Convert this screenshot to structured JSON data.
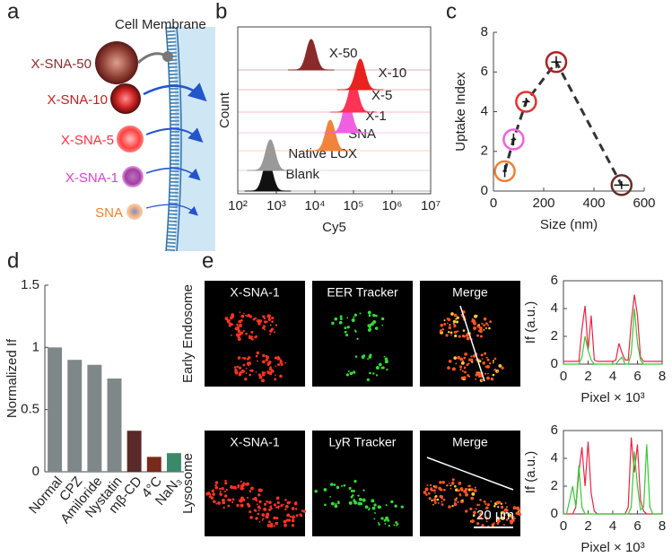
{
  "panel_labels": [
    "a",
    "b",
    "c",
    "d",
    "e"
  ],
  "schematic": {
    "membrane_label": "Cell Membrane",
    "particles": [
      "X-SNA-50",
      "X-SNA-10",
      "X-SNA-5",
      "X-SNA-1",
      "SNA"
    ]
  },
  "micrographs": {
    "rows": [
      {
        "label": "Early Endosome",
        "channels": [
          "X-SNA-1",
          "EER Tracker",
          "Merge"
        ]
      },
      {
        "label": "Lysosome",
        "channels": [
          "X-SNA-1",
          "LyR Tracker",
          "Merge"
        ]
      }
    ],
    "scale_bar": "20 μm"
  },
  "chart_data": [
    {
      "type": "ridge",
      "x_label": "Cy5",
      "y_label": "Count",
      "xscale": "log",
      "xlim": [
        100,
        10000000
      ],
      "xticks": [
        {
          "value": 100,
          "label": "10²"
        },
        {
          "value": 1000,
          "label": "10³"
        },
        {
          "value": 10000,
          "label": "10⁴"
        },
        {
          "value": 100000,
          "label": "10⁵"
        },
        {
          "value": 1000000,
          "label": "10⁶"
        },
        {
          "value": 10000000,
          "label": "10⁷"
        }
      ],
      "series": [
        {
          "name": "Blank",
          "color": "#111111",
          "peak": 600
        },
        {
          "name": "Native LOX",
          "color": "#999999",
          "peak": 700
        },
        {
          "name": "SNA",
          "color": "#f2833a",
          "peak": 25000
        },
        {
          "name": "X-1",
          "color": "#f25ee0",
          "peak": 70000
        },
        {
          "name": "X-5",
          "color": "#ff3355",
          "peak": 100000
        },
        {
          "name": "X-10",
          "color": "#e8231f",
          "peak": 150000
        },
        {
          "name": "X-50",
          "color": "#8a2a2a",
          "peak": 8000
        }
      ]
    },
    {
      "type": "scatter",
      "x_label": "Size (nm)",
      "y_label": "Uptake Index",
      "x": [
        45,
        80,
        130,
        250,
        510
      ],
      "y": [
        1.0,
        2.6,
        4.5,
        6.5,
        0.3
      ],
      "yerr": [
        0.3,
        0.3,
        0.2,
        0.3,
        0.2
      ],
      "xerr": [
        8,
        10,
        15,
        20,
        30
      ],
      "point_colors": [
        "#f08030",
        "#f060e0",
        "#e83030",
        "#b02020",
        "#6b2a2a"
      ],
      "line_color": "#333333",
      "xlim": [
        0,
        600
      ],
      "xticks": [
        0,
        200,
        400,
        600
      ],
      "ylim": [
        0,
        8
      ],
      "yticks": [
        0,
        2,
        4,
        6,
        8
      ]
    },
    {
      "type": "bar",
      "y_label": "Normalized If",
      "categories": [
        "Normal",
        "CPZ",
        "Amiloride",
        "Nystatin",
        "mβ-CD",
        "4°C",
        "NaN₃"
      ],
      "values": [
        1,
        0.9,
        0.86,
        0.75,
        0.33,
        0.12,
        0.15
      ],
      "colors": [
        "#7e8889",
        "#7e8889",
        "#7e8889",
        "#7e8889",
        "#5a2a2a",
        "#7a2a1a",
        "#3a8a6a"
      ],
      "ylim": [
        0,
        1.5
      ],
      "yticks": [
        0,
        0.5,
        1,
        1.5
      ]
    },
    {
      "type": "line",
      "x_label": "Pixel × 10³",
      "y_label": "If (a.u.)",
      "x": [
        0,
        0.25,
        0.5,
        0.75,
        1,
        1.25,
        1.5,
        1.75,
        2,
        2.25,
        2.5,
        2.75,
        3,
        3.25,
        3.5,
        3.75,
        4,
        4.25,
        4.5,
        4.75,
        5,
        5.25,
        5.5,
        5.75,
        6,
        6.25,
        6.5,
        6.75,
        7,
        7.25,
        7.5,
        7.75,
        8
      ],
      "series": [
        {
          "color": "#ee2244",
          "values": [
            0.2,
            0.2,
            0.2,
            0.2,
            0.2,
            0.2,
            2.5,
            4.2,
            1.0,
            3.5,
            0.3,
            0.2,
            0.2,
            0.2,
            0.2,
            0.2,
            0.2,
            0.3,
            1.5,
            0.8,
            0.3,
            0.3,
            3.0,
            5.0,
            3.5,
            0.5,
            0.2,
            0.2,
            0.2,
            0.2,
            0.2,
            0.2,
            0.2
          ]
        },
        {
          "color": "#33cc33",
          "values": [
            0,
            0,
            0,
            0,
            0,
            0,
            0.5,
            2.0,
            1.0,
            0.3,
            0,
            0,
            0,
            0,
            0,
            0,
            0,
            0,
            0.3,
            0.5,
            0,
            0,
            0.8,
            4.0,
            1.5,
            0.3,
            0,
            0,
            0,
            0,
            0,
            0,
            0
          ]
        }
      ],
      "xlim": [
        0,
        8
      ],
      "xticks": [
        0,
        2,
        4,
        6,
        8
      ],
      "ylim": [
        0,
        6
      ],
      "yticks": [
        0,
        2,
        4,
        6
      ]
    },
    {
      "type": "line",
      "x_label": "Pixel × 10³",
      "y_label": "If (a.u.)",
      "x": [
        0,
        0.25,
        0.5,
        0.75,
        1,
        1.25,
        1.5,
        1.75,
        2,
        2.25,
        2.5,
        2.75,
        3,
        3.25,
        3.5,
        3.75,
        4,
        4.25,
        4.5,
        4.75,
        5,
        5.25,
        5.5,
        5.75,
        6,
        6.25,
        6.5,
        6.75,
        7,
        7.25,
        7.5,
        7.75,
        8
      ],
      "series": [
        {
          "color": "#ee2244",
          "values": [
            0,
            0,
            0,
            0,
            0.5,
            3.0,
            4.8,
            2.0,
            5.2,
            1.5,
            0.2,
            0,
            0,
            0,
            0,
            0,
            0,
            0,
            0,
            0,
            0,
            0.5,
            5.5,
            3.0,
            5.0,
            1.0,
            0.2,
            0,
            0,
            0,
            0,
            0,
            0
          ]
        },
        {
          "color": "#33cc33",
          "values": [
            0,
            0,
            1.0,
            2.0,
            0.5,
            3.5,
            0.5,
            0,
            0,
            0,
            0,
            0,
            0,
            0,
            0,
            0,
            0,
            0,
            0,
            0,
            0,
            0,
            0.5,
            4.5,
            2.0,
            0.3,
            0.5,
            5.0,
            0.5,
            0,
            0,
            0,
            0
          ]
        }
      ],
      "xlim": [
        0,
        8
      ],
      "xticks": [
        0,
        2,
        4,
        6,
        8
      ],
      "ylim": [
        0,
        6
      ],
      "yticks": [
        0,
        2,
        4,
        6
      ]
    }
  ]
}
